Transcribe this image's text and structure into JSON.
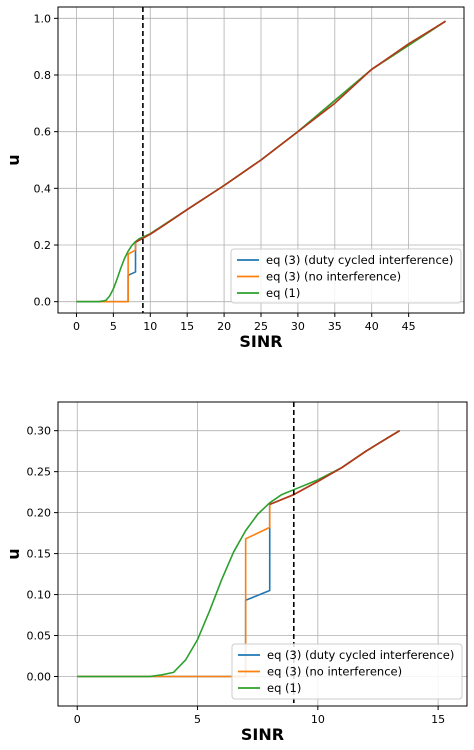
{
  "chart_data": [
    {
      "type": "line",
      "xlabel": "SINR",
      "ylabel": "u",
      "xlim": [
        -2.5,
        52.5
      ],
      "ylim": [
        -0.04,
        1.04
      ],
      "xticks": [
        0,
        5,
        10,
        15,
        20,
        25,
        30,
        35,
        40,
        45
      ],
      "yticks": [
        0.0,
        0.2,
        0.4,
        0.6,
        0.8,
        1.0
      ],
      "xtick_labels": [
        "0",
        "5",
        "10",
        "15",
        "20",
        "25",
        "30",
        "35",
        "40",
        "45"
      ],
      "ytick_labels": [
        "0.0",
        "0.2",
        "0.4",
        "0.6",
        "0.8",
        "1.0"
      ],
      "grid": true,
      "vline": 9,
      "legend_position": "lower-right",
      "series": [
        {
          "name": "eq (3) (duty cycled interference)",
          "color": "#1f77b4",
          "points": [
            [
              0,
              0
            ],
            [
              7,
              0
            ],
            [
              7,
              0.093
            ],
            [
              8,
              0.105
            ],
            [
              8,
              0.21
            ],
            [
              10,
              0.238
            ],
            [
              15,
              0.325
            ],
            [
              20,
              0.41
            ],
            [
              25,
              0.5
            ],
            [
              30,
              0.6
            ],
            [
              40,
              0.82
            ],
            [
              50,
              0.99
            ]
          ]
        },
        {
          "name": "eq (3) (no interference)",
          "color": "#ff7f0e",
          "points": [
            [
              0,
              0
            ],
            [
              7,
              0
            ],
            [
              7,
              0.168
            ],
            [
              7.5,
              0.175
            ],
            [
              8,
              0.182
            ],
            [
              8,
              0.21
            ],
            [
              10,
              0.238
            ],
            [
              15,
              0.325
            ],
            [
              20,
              0.41
            ],
            [
              25,
              0.5
            ],
            [
              30,
              0.6
            ],
            [
              40,
              0.82
            ],
            [
              50,
              0.99
            ]
          ]
        },
        {
          "name": "eq (1)",
          "color": "#2ca02c",
          "points": [
            [
              0,
              0
            ],
            [
              3,
              0
            ],
            [
              3.5,
              0.002
            ],
            [
              4,
              0.005
            ],
            [
              4.5,
              0.02
            ],
            [
              5,
              0.045
            ],
            [
              5.5,
              0.08
            ],
            [
              6,
              0.118
            ],
            [
              6.5,
              0.152
            ],
            [
              7,
              0.178
            ],
            [
              7.5,
              0.198
            ],
            [
              8,
              0.212
            ],
            [
              8.5,
              0.222
            ],
            [
              9,
              0.228
            ],
            [
              10,
              0.24
            ],
            [
              15,
              0.325
            ],
            [
              20,
              0.41
            ],
            [
              25,
              0.5
            ],
            [
              30,
              0.6
            ],
            [
              40,
              0.82
            ],
            [
              50,
              0.99
            ]
          ]
        },
        {
          "name": "",
          "color": "#b5371b",
          "points": [
            [
              8,
              0.21
            ],
            [
              10,
              0.238
            ],
            [
              12,
              0.272
            ],
            [
              15,
              0.325
            ],
            [
              20,
              0.41
            ],
            [
              25,
              0.5
            ],
            [
              30,
              0.6
            ],
            [
              35,
              0.7
            ],
            [
              40,
              0.82
            ],
            [
              45,
              0.91
            ],
            [
              50,
              0.99
            ]
          ]
        }
      ]
    },
    {
      "type": "line",
      "xlabel": "SINR",
      "ylabel": "u",
      "xlim": [
        -0.8,
        16.2
      ],
      "ylim": [
        -0.036,
        0.335
      ],
      "xticks": [
        0,
        5,
        10,
        15
      ],
      "yticks": [
        0.0,
        0.05,
        0.1,
        0.15,
        0.2,
        0.25,
        0.3
      ],
      "xtick_labels": [
        "0",
        "5",
        "10",
        "15"
      ],
      "ytick_labels": [
        "0.00",
        "0.05",
        "0.10",
        "0.15",
        "0.20",
        "0.25",
        "0.30"
      ],
      "grid": true,
      "vline": 9,
      "legend_position": "lower-right",
      "series": [
        {
          "name": "eq (3) (duty cycled interference)",
          "color": "#1f77b4",
          "points": [
            [
              0,
              0
            ],
            [
              7,
              0
            ],
            [
              7,
              0.093
            ],
            [
              8,
              0.105
            ],
            [
              8,
              0.21
            ],
            [
              9,
              0.222
            ],
            [
              10,
              0.238
            ],
            [
              11,
              0.255
            ],
            [
              12,
              0.275
            ],
            [
              13,
              0.293
            ],
            [
              13.4,
              0.3
            ]
          ]
        },
        {
          "name": "eq (3) (no interference)",
          "color": "#ff7f0e",
          "points": [
            [
              0,
              0
            ],
            [
              7,
              0
            ],
            [
              7,
              0.168
            ],
            [
              7.5,
              0.175
            ],
            [
              8,
              0.182
            ],
            [
              8,
              0.21
            ],
            [
              9,
              0.222
            ],
            [
              10,
              0.238
            ],
            [
              11,
              0.255
            ],
            [
              12,
              0.275
            ],
            [
              13,
              0.293
            ],
            [
              13.4,
              0.3
            ]
          ]
        },
        {
          "name": "eq (1)",
          "color": "#2ca02c",
          "points": [
            [
              0,
              0
            ],
            [
              3,
              0
            ],
            [
              3.5,
              0.002
            ],
            [
              4,
              0.005
            ],
            [
              4.5,
              0.02
            ],
            [
              5,
              0.045
            ],
            [
              5.5,
              0.08
            ],
            [
              6,
              0.118
            ],
            [
              6.5,
              0.152
            ],
            [
              7,
              0.178
            ],
            [
              7.5,
              0.198
            ],
            [
              8,
              0.212
            ],
            [
              8.5,
              0.222
            ],
            [
              9,
              0.228
            ],
            [
              10,
              0.24
            ],
            [
              11,
              0.255
            ],
            [
              12,
              0.275
            ],
            [
              13,
              0.293
            ],
            [
              13.4,
              0.3
            ]
          ]
        },
        {
          "name": "",
          "color": "#b5371b",
          "points": [
            [
              8,
              0.21
            ],
            [
              9,
              0.222
            ],
            [
              10,
              0.238
            ],
            [
              11,
              0.255
            ],
            [
              12,
              0.275
            ],
            [
              13,
              0.293
            ],
            [
              13.4,
              0.3
            ]
          ]
        }
      ]
    }
  ]
}
